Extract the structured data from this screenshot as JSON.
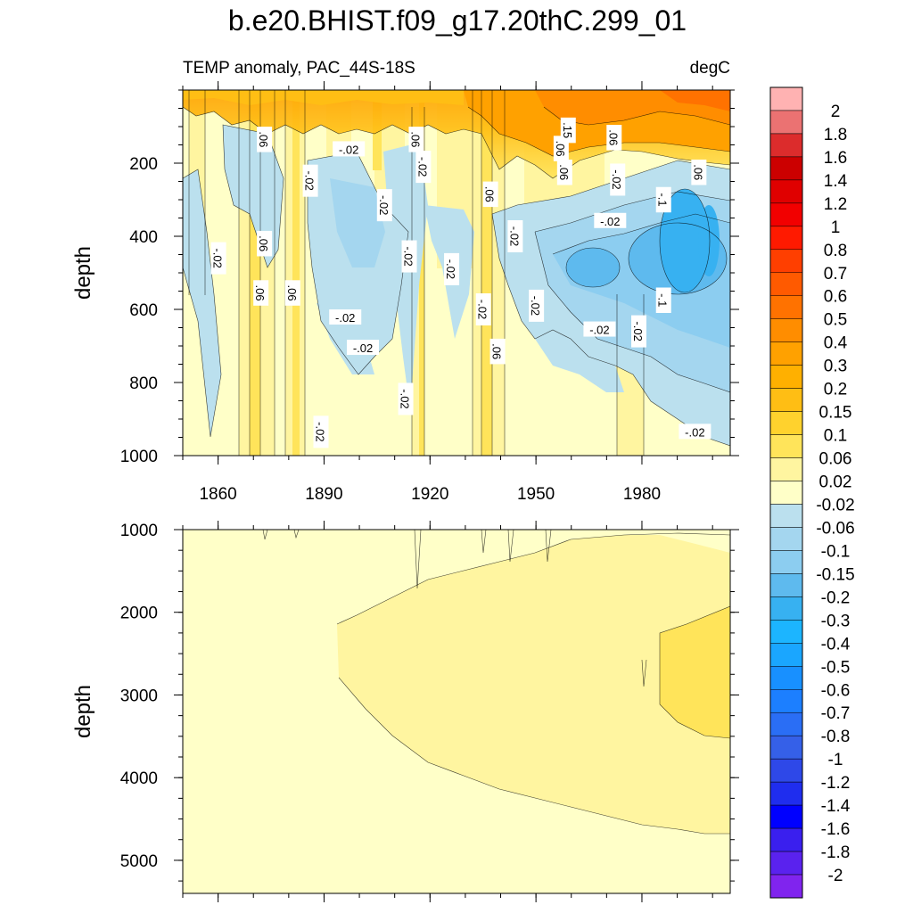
{
  "title": "b.e20.BHIST.f09_g17.20thC.299_01",
  "chart_data": [
    {
      "type": "contour",
      "title": "TEMP anomaly, PAC_44S-18S",
      "units": "degC",
      "ylabel": "depth",
      "xlabel": "",
      "xlim": [
        1850,
        2005
      ],
      "ylim": [
        1000,
        0
      ],
      "xticks": [
        1860,
        1890,
        1920,
        1950,
        1980
      ],
      "yticks": [
        200,
        400,
        600,
        800,
        1000
      ],
      "contour_labels": [
        {
          "text": ".06",
          "x": 1873,
          "y": 135,
          "angle": 90
        },
        {
          "text": ".06",
          "x": 1916,
          "y": 135,
          "angle": 90
        },
        {
          "text": ".06",
          "x": 1873,
          "y": 420,
          "angle": 90
        },
        {
          "text": ".06",
          "x": 1872,
          "y": 555,
          "angle": 90
        },
        {
          "text": ".06",
          "x": 1881,
          "y": 555,
          "angle": 90
        },
        {
          "text": ".06",
          "x": 1937,
          "y": 285,
          "angle": 90
        },
        {
          "text": ".06",
          "x": 1939,
          "y": 715,
          "angle": 90
        },
        {
          "text": ".06",
          "x": 1972,
          "y": 130,
          "angle": 90
        },
        {
          "text": ".06",
          "x": 1957,
          "y": 160,
          "angle": 90
        },
        {
          "text": ".06",
          "x": 1958,
          "y": 225,
          "angle": 90
        },
        {
          "text": ".06",
          "x": 1996,
          "y": 225,
          "angle": 90
        },
        {
          "text": ".15",
          "x": 1959,
          "y": 110,
          "angle": 90
        },
        {
          "text": "-.02",
          "x": 1860,
          "y": 460,
          "angle": 90
        },
        {
          "text": "-.02",
          "x": 1886,
          "y": 248,
          "angle": 90
        },
        {
          "text": "-.02",
          "x": 1897,
          "y": 162,
          "angle": 0
        },
        {
          "text": "-.02",
          "x": 1907,
          "y": 315,
          "angle": 90
        },
        {
          "text": "-.02",
          "x": 1918,
          "y": 210,
          "angle": 90
        },
        {
          "text": "-.02",
          "x": 1914,
          "y": 455,
          "angle": 90
        },
        {
          "text": "-.02",
          "x": 1926,
          "y": 490,
          "angle": 90
        },
        {
          "text": "-.02",
          "x": 1944,
          "y": 400,
          "angle": 90
        },
        {
          "text": "-.02",
          "x": 1935,
          "y": 600,
          "angle": 90
        },
        {
          "text": "-.02",
          "x": 1950,
          "y": 590,
          "angle": 90
        },
        {
          "text": "-.02",
          "x": 1896,
          "y": 622,
          "angle": 0
        },
        {
          "text": "-.02",
          "x": 1901,
          "y": 705,
          "angle": 0
        },
        {
          "text": "-.02",
          "x": 1913,
          "y": 845,
          "angle": 90
        },
        {
          "text": "-.02",
          "x": 1889,
          "y": 935,
          "angle": 90
        },
        {
          "text": "-.02",
          "x": 1973,
          "y": 245,
          "angle": 90
        },
        {
          "text": "-.02",
          "x": 1971,
          "y": 358,
          "angle": 0
        },
        {
          "text": "-.02",
          "x": 1968,
          "y": 655,
          "angle": 0
        },
        {
          "text": "-.02",
          "x": 1979,
          "y": 660,
          "angle": 90
        },
        {
          "text": "-.1",
          "x": 1986,
          "y": 300,
          "angle": 90
        },
        {
          "text": "-.1",
          "x": 1986,
          "y": 575,
          "angle": 90
        },
        {
          "text": "-.02",
          "x": 1995,
          "y": 935,
          "angle": 0
        }
      ]
    },
    {
      "type": "contour",
      "title": "",
      "ylabel": "depth",
      "xlabel": "",
      "xlim": [
        1850,
        2005
      ],
      "ylim": [
        5400,
        1000
      ],
      "xticks": [
        1860,
        1890,
        1920,
        1950,
        1980
      ],
      "yticks": [
        1000,
        2000,
        3000,
        4000,
        5000
      ],
      "contour_labels": []
    }
  ],
  "colorbar": {
    "levels": [
      "2",
      "1.8",
      "1.6",
      "1.4",
      "1.2",
      "1",
      "0.8",
      "0.7",
      "0.6",
      "0.5",
      "0.4",
      "0.3",
      "0.2",
      "0.15",
      "0.1",
      "0.06",
      "0.02",
      "-0.02",
      "-0.06",
      "-0.1",
      "-0.15",
      "-0.2",
      "-0.3",
      "-0.4",
      "-0.5",
      "-0.6",
      "-0.7",
      "-0.8",
      "-1",
      "-1.2",
      "-1.4",
      "-1.6",
      "-1.8",
      "-2"
    ],
    "colors": [
      "#ffb2b2",
      "#eb7272",
      "#dc2c2c",
      "#cc0000",
      "#e00000",
      "#f20000",
      "#ff1a00",
      "#ff3f00",
      "#ff5a00",
      "#ff7200",
      "#ff8d00",
      "#ffa100",
      "#ffb000",
      "#ffbe14",
      "#ffd22d",
      "#ffe45a",
      "#fff5a0",
      "#ffffc8",
      "#bbe0ee",
      "#a4d6ef",
      "#8ccdf0",
      "#5ebaee",
      "#37b1f1",
      "#1cb5ff",
      "#1aa6ff",
      "#1890ff",
      "#1c7fff",
      "#2a6ef5",
      "#3560e8",
      "#2e48e8",
      "#1f2dee",
      "#0000ff",
      "#3a1fee",
      "#5a22ee",
      "#8024ee"
    ]
  }
}
